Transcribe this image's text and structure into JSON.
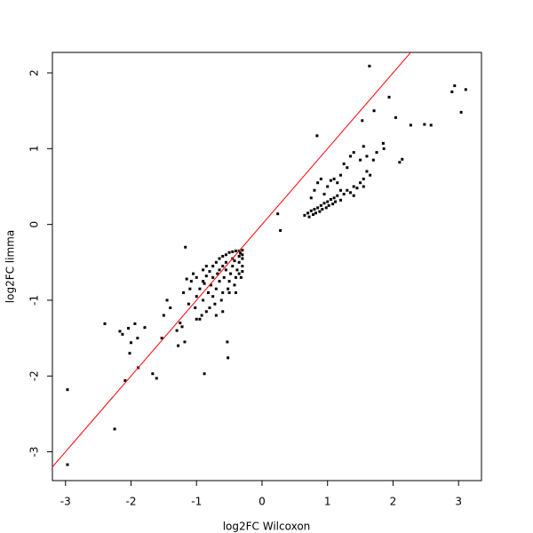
{
  "chart_data": {
    "type": "scatter",
    "xlabel": "log2FC Wilcoxon",
    "ylabel": "log2FC limma",
    "x": [
      -2.97,
      -2.97,
      -2.25,
      -2.09,
      -2.4,
      -2.17,
      -2.13,
      -2.04,
      -2.0,
      -1.94,
      -1.9,
      -1.89,
      -2.02,
      -1.67,
      -1.61,
      -1.53,
      -1.79,
      -1.17,
      -0.88,
      -0.52,
      -0.53,
      1.64,
      2.94,
      2.9,
      3.11,
      3.04,
      2.58,
      2.48,
      2.27,
      2.04,
      1.94,
      1.71,
      1.53,
      1.55,
      0.84,
      2.14,
      2.1,
      1.86,
      1.85,
      0.28,
      0.24,
      -0.95,
      -0.9,
      -0.85,
      -0.8,
      -0.75,
      -0.7,
      -0.65,
      -0.6,
      -0.55,
      -0.5,
      -0.45,
      -0.4,
      -0.35,
      -0.3,
      -0.3,
      -0.3,
      -0.3,
      -0.32,
      -0.35,
      -0.38,
      -0.4,
      -0.42,
      -0.45,
      -0.48,
      -0.5,
      -0.52,
      -0.55,
      -0.58,
      -0.6,
      -0.62,
      -0.65,
      -0.68,
      -0.7,
      -0.72,
      -0.75,
      -0.78,
      -0.8,
      -0.82,
      -0.85,
      -0.88,
      -0.9,
      -0.92,
      -0.95,
      -1.0,
      -1.0,
      -1.02,
      -1.05,
      -1.08,
      -1.1,
      -1.12,
      -1.15,
      -1.2,
      -1.25,
      -1.28,
      -1.3,
      -1.0,
      -0.7,
      -0.6,
      -0.45,
      -0.35,
      -0.33,
      -0.6,
      -1.45,
      -1.5,
      -1.4,
      -1.18,
      -1.22,
      -0.9,
      -0.85,
      -0.75,
      -0.65,
      -0.55,
      -0.42,
      -0.5,
      -0.4,
      -0.35,
      -0.3,
      0.65,
      0.7,
      0.72,
      0.75,
      0.78,
      0.8,
      0.82,
      0.85,
      0.88,
      0.9,
      0.92,
      0.95,
      0.98,
      1.0,
      1.02,
      1.05,
      1.08,
      1.1,
      1.12,
      1.15,
      1.2,
      1.25,
      1.3,
      1.35,
      1.4,
      1.45,
      1.5,
      1.55,
      1.6,
      1.65,
      0.75,
      0.8,
      0.85,
      0.9,
      0.95,
      1.0,
      1.05,
      1.1,
      1.15,
      1.2,
      1.25,
      1.3,
      1.35,
      1.4,
      1.5,
      1.6,
      1.7,
      1.75,
      1.2,
      1.4,
      1.55
    ],
    "values": [
      -2.18,
      -3.17,
      -2.7,
      -2.06,
      -1.31,
      -1.41,
      -1.45,
      -1.37,
      -1.56,
      -1.31,
      -1.5,
      -1.89,
      -1.7,
      -1.97,
      -2.03,
      -1.5,
      -1.36,
      -0.3,
      -1.97,
      -1.76,
      -1.55,
      2.09,
      1.83,
      1.75,
      1.78,
      1.48,
      1.31,
      1.32,
      1.31,
      1.41,
      1.68,
      1.5,
      1.37,
      1.03,
      1.17,
      0.86,
      0.82,
      1.0,
      1.07,
      -0.08,
      0.14,
      -0.85,
      -0.75,
      -0.68,
      -0.62,
      -0.55,
      -0.5,
      -0.45,
      -0.42,
      -0.4,
      -0.37,
      -0.36,
      -0.35,
      -0.35,
      -0.34,
      -0.45,
      -0.55,
      -0.62,
      -0.7,
      -0.5,
      -0.6,
      -0.7,
      -0.8,
      -0.55,
      -0.65,
      -0.75,
      -0.85,
      -0.6,
      -0.7,
      -0.9,
      -1.0,
      -0.75,
      -0.65,
      -0.85,
      -1.05,
      -0.95,
      -0.8,
      -1.1,
      -0.9,
      -1.15,
      -0.78,
      -1.0,
      -1.2,
      -1.25,
      -0.7,
      -0.95,
      -1.1,
      -0.65,
      -0.75,
      -0.85,
      -1.05,
      -0.72,
      -0.9,
      -1.3,
      -1.6,
      -1.4,
      -1.25,
      -1.2,
      -0.55,
      -0.45,
      -0.42,
      -0.38,
      -1.15,
      -1.0,
      -1.2,
      -1.1,
      -1.55,
      -1.35,
      -0.6,
      -0.55,
      -0.7,
      -0.6,
      -0.5,
      -0.48,
      -0.9,
      -0.9,
      -0.65,
      -0.4,
      0.12,
      0.15,
      0.1,
      0.18,
      0.13,
      0.2,
      0.15,
      0.22,
      0.17,
      0.25,
      0.2,
      0.28,
      0.22,
      0.3,
      0.25,
      0.33,
      0.27,
      0.35,
      0.3,
      0.38,
      0.32,
      0.4,
      0.45,
      0.42,
      0.5,
      0.48,
      0.55,
      0.6,
      0.7,
      0.65,
      0.35,
      0.45,
      0.55,
      0.6,
      0.4,
      0.5,
      0.58,
      0.6,
      0.55,
      0.65,
      0.8,
      0.75,
      0.9,
      0.95,
      0.85,
      0.9,
      0.85,
      0.95,
      0.45,
      0.38,
      0.5
    ],
    "color": "#000000",
    "xlim": [
      -3.2,
      3.35
    ],
    "ylim": [
      -3.38,
      2.27
    ],
    "xticks": [
      -3,
      -2,
      -1,
      0,
      1,
      2,
      3
    ],
    "yticks": [
      -3,
      -2,
      -1,
      0,
      1,
      2
    ],
    "reference_line": {
      "slope": 1,
      "intercept": 0,
      "color": "#ff0000"
    }
  }
}
